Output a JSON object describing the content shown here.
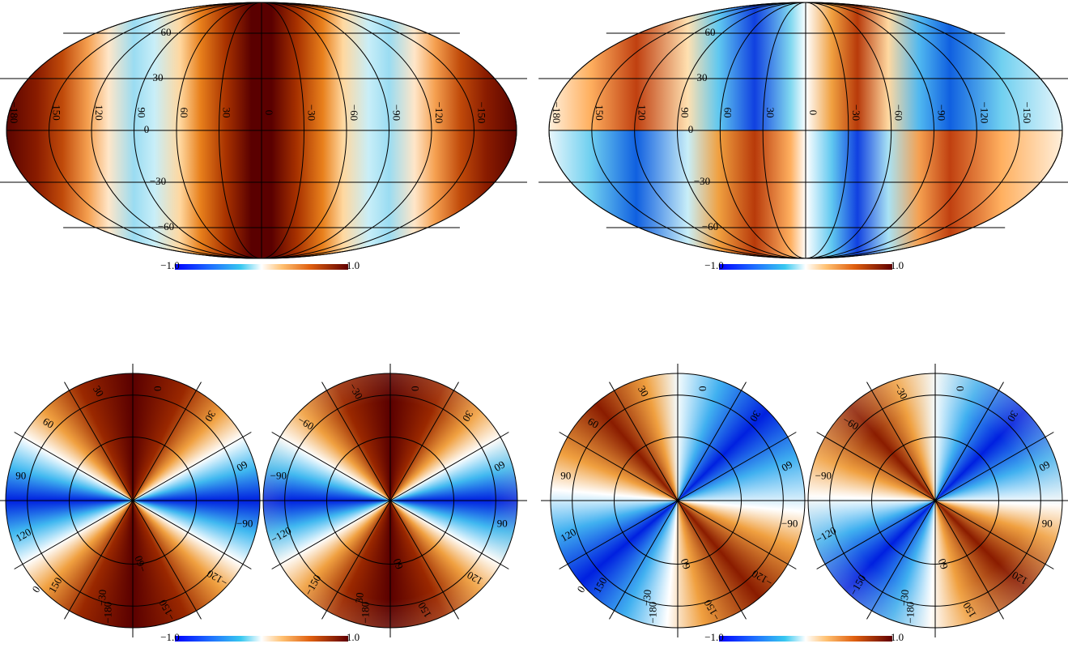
{
  "panels": [
    {
      "graticule": {
        "lon_labels": [
          "−180",
          "150",
          "120",
          "90",
          "60",
          "30",
          "0",
          "−30",
          "−60",
          "−90",
          "−120",
          "−150"
        ],
        "lat_labels": [
          "60",
          "30",
          "0",
          "−30",
          "−60"
        ]
      },
      "colorbar": {
        "min_label": "−1.0",
        "max_label": "1.0"
      }
    },
    {
      "graticule": {
        "lon_labels": [
          "−180",
          "150",
          "120",
          "90",
          "60",
          "30",
          "0",
          "−30",
          "−60",
          "−90",
          "−120",
          "−150"
        ],
        "lat_labels": [
          "60",
          "30",
          "0",
          "−30",
          "−60"
        ]
      },
      "colorbar": {
        "min_label": "−1.0",
        "max_label": "1.0"
      }
    },
    {
      "hemispheres": [
        {
          "labels": [
            "0",
            "30",
            "30",
            "60",
            "60",
            "90",
            "−90",
            "120",
            "−120",
            "150",
            "−150",
            "−180",
            "−60",
            "−30",
            "0"
          ]
        },
        {
          "labels": [
            "0",
            "−30",
            "30",
            "−60",
            "60",
            "−90",
            "90",
            "−120",
            "120",
            "−150",
            "150",
            "−180",
            "60",
            "30"
          ]
        }
      ],
      "colorbar": {
        "min_label": "−1.0",
        "max_label": "1.0"
      }
    },
    {
      "hemispheres": [
        {
          "labels": [
            "0",
            "30",
            "30",
            "60",
            "60",
            "90",
            "−90",
            "120",
            "−120",
            "150",
            "−150",
            "−180",
            "60",
            "−30",
            "0"
          ]
        },
        {
          "labels": [
            "0",
            "−30",
            "30",
            "−60",
            "60",
            "−90",
            "90",
            "−120",
            "120",
            "−150",
            "150",
            "−180",
            "60",
            "−30"
          ]
        }
      ],
      "colorbar": {
        "min_label": "−1.0",
        "max_label": "1.0"
      }
    }
  ]
}
